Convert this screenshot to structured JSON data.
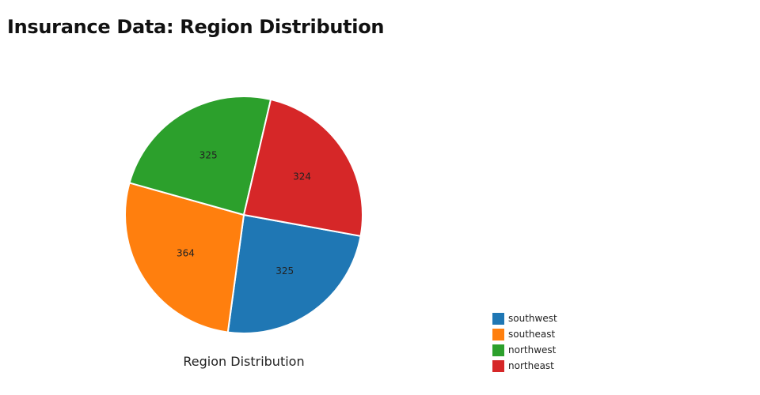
{
  "page": {
    "title": "Insurance Data: Region Distribution"
  },
  "chart_data": {
    "type": "pie",
    "title": "Insurance Data: Region Distribution",
    "caption": "Region Distribution",
    "slices": [
      {
        "label": "southwest",
        "value": 325,
        "color": "#1f77b4"
      },
      {
        "label": "southeast",
        "value": 364,
        "color": "#ff7f0e"
      },
      {
        "label": "northwest",
        "value": 325,
        "color": "#2ca02c"
      },
      {
        "label": "northeast",
        "value": 324,
        "color": "#d62728"
      }
    ],
    "direction": "clockwise",
    "legend_position": "bottom-right"
  }
}
